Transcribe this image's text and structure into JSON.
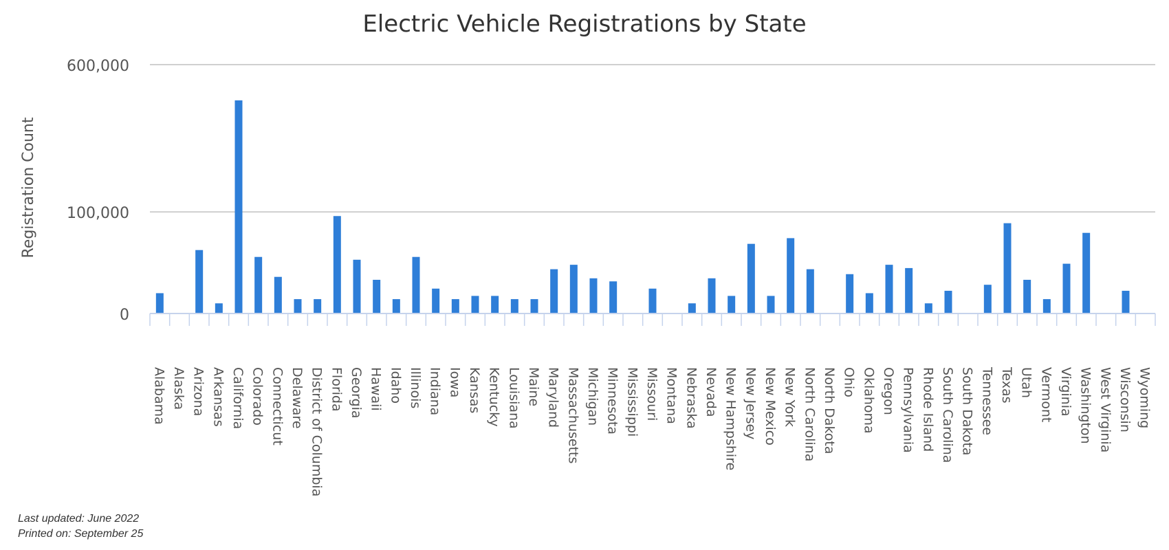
{
  "chart_data": {
    "type": "bar",
    "title": "Electric Vehicle Registrations by State",
    "xlabel": "",
    "ylabel": "Registration Count",
    "scale": "sqrt",
    "ylim": [
      0,
      600000
    ],
    "yticks": [
      0,
      100000,
      600000
    ],
    "ytick_labels": [
      "0",
      "100,000",
      "600,000"
    ],
    "grid": true,
    "legend": "none",
    "bar_color": "#2e7ed8",
    "categories": [
      "Alabama",
      "Alaska",
      "Arizona",
      "Arkansas",
      "California",
      "Colorado",
      "Connecticut",
      "Delaware",
      "District of Columbia",
      "Florida",
      "Georgia",
      "Hawaii",
      "Idaho",
      "Illinois",
      "Indiana",
      "Iowa",
      "Kansas",
      "Kentucky",
      "Louisiana",
      "Maine",
      "Maryland",
      "Massachusetts",
      "Michigan",
      "Minnesota",
      "Mississippi",
      "Missouri",
      "Montana",
      "Nebraska",
      "Nevada",
      "New Hampshire",
      "New Jersey",
      "New Mexico",
      "New York",
      "North Carolina",
      "North Dakota",
      "Ohio",
      "Oklahoma",
      "Oregon",
      "Pennsylvania",
      "Rhode Island",
      "South Carolina",
      "South Dakota",
      "Tennessee",
      "Texas",
      "Utah",
      "Vermont",
      "Virginia",
      "Washington",
      "West Virginia",
      "Wisconsin",
      "Wyoming"
    ],
    "values": [
      4000,
      0,
      39000,
      1000,
      440000,
      31000,
      13000,
      2000,
      2000,
      92000,
      28000,
      11000,
      2000,
      31000,
      6000,
      2000,
      3000,
      3000,
      2000,
      2000,
      19000,
      23000,
      12000,
      10000,
      0,
      6000,
      0,
      1000,
      12000,
      3000,
      47000,
      3000,
      55000,
      19000,
      0,
      15000,
      4000,
      23000,
      20000,
      1000,
      5000,
      0,
      8000,
      79000,
      11000,
      2000,
      24000,
      63000,
      0,
      5000,
      0
    ]
  },
  "footer": {
    "updated": "Last updated: June 2022",
    "printed": "Printed on: September 25"
  }
}
